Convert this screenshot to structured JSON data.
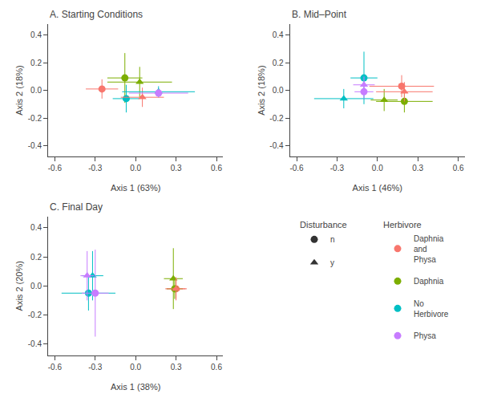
{
  "chart_data": [
    {
      "type": "scatter",
      "title": "A. Starting Conditions",
      "xlabel": "Axis 1 (63%)",
      "ylabel": "Axis 2 (18%)",
      "xlim": [
        -0.65,
        0.65
      ],
      "ylim": [
        -0.48,
        0.48
      ],
      "xticks": [
        -0.6,
        -0.3,
        {
          "value": 0,
          "label": "0.0"
        },
        0.3,
        0.6
      ],
      "yticks": [
        -0.4,
        -0.2,
        {
          "value": 0,
          "label": "0.0"
        },
        0.2,
        0.4
      ],
      "grid": false,
      "x": [
        -0.25,
        -0.08,
        -0.07,
        0.03,
        0.05,
        0.17,
        0.17
      ],
      "values": [
        0.01,
        0.09,
        -0.06,
        0.06,
        -0.05,
        -0.01,
        -0.02
      ],
      "xerr": [
        0.12,
        0.13,
        0.1,
        0.24,
        0.16,
        0.27,
        0.22
      ],
      "yerr": [
        0.07,
        0.18,
        0.1,
        0.11,
        0.07,
        0.04,
        0.03
      ],
      "colors": [
        "#F8766D",
        "#7CAE00",
        "#00BFC4",
        "#7CAE00",
        "#F8766D",
        "#00BFC4",
        "#C77CFF"
      ],
      "markers": [
        "circle",
        "circle",
        "circle",
        "triangle",
        "triangle",
        "triangle",
        "circle"
      ],
      "legends": [
        {
          "title": "Disturbance",
          "entries": [
            {
              "label": "n",
              "color": "#333333",
              "marker": "circle"
            },
            {
              "label": "y",
              "color": "#333333",
              "marker": "triangle"
            }
          ]
        },
        {
          "title": "Herbivore",
          "entries": [
            {
              "label": "Daphnia\nand\nPhysa",
              "color": "#F8766D",
              "marker": "circle"
            },
            {
              "label": "Daphnia",
              "color": "#7CAE00",
              "marker": "circle"
            },
            {
              "label": "No\nHerbivore",
              "color": "#00BFC4",
              "marker": "circle"
            },
            {
              "label": "Physa",
              "color": "#C77CFF",
              "marker": "circle"
            }
          ]
        }
      ]
    },
    {
      "type": "scatter",
      "title": "B. Mid–Point",
      "xlabel": "Axis 1 (46%)",
      "ylabel": "Axis 2 (18%)",
      "xlim": [
        -0.65,
        0.65
      ],
      "ylim": [
        -0.48,
        0.48
      ],
      "xticks": [
        -0.6,
        -0.3,
        {
          "value": 0,
          "label": "0.0"
        },
        0.3,
        0.6
      ],
      "yticks": [
        -0.4,
        -0.2,
        {
          "value": 0,
          "label": "0.0"
        },
        0.2,
        0.4
      ],
      "grid": false,
      "x": [
        -0.25,
        -0.1,
        -0.1,
        -0.1,
        0.05,
        0.18,
        0.2,
        0.2
      ],
      "values": [
        -0.06,
        0.09,
        0.04,
        -0.01,
        -0.07,
        0.03,
        -0.08,
        -0.01
      ],
      "xerr": [
        0.22,
        0.1,
        0.08,
        0.07,
        0.1,
        0.24,
        0.21,
        0.21
      ],
      "yerr": [
        0.07,
        0.19,
        0.06,
        0.05,
        0.08,
        0.08,
        0.08,
        0.07
      ],
      "colors": [
        "#00BFC4",
        "#00BFC4",
        "#C77CFF",
        "#C77CFF",
        "#7CAE00",
        "#F8766D",
        "#7CAE00",
        "#F8766D"
      ],
      "markers": [
        "triangle",
        "circle",
        "triangle",
        "circle",
        "triangle",
        "circle",
        "circle",
        "triangle"
      ]
    },
    {
      "type": "scatter",
      "title": "C. Final Day",
      "xlabel": "Axis 1 (38%)",
      "ylabel": "Axis 2 (20%)",
      "xlim": [
        -0.65,
        0.65
      ],
      "ylim": [
        -0.48,
        0.48
      ],
      "xticks": [
        -0.6,
        -0.3,
        {
          "value": 0,
          "label": "0.0"
        },
        0.3,
        0.6
      ],
      "yticks": [
        -0.4,
        -0.2,
        {
          "value": 0,
          "label": "0.0"
        },
        0.2,
        0.4
      ],
      "grid": false,
      "x": [
        -0.35,
        -0.32,
        -0.36,
        -0.3,
        0.28,
        0.3,
        0.29,
        0.3
      ],
      "values": [
        -0.05,
        0.07,
        0.07,
        -0.05,
        0.05,
        -0.02,
        -0.02,
        -0.02
      ],
      "xerr": [
        0.2,
        0.08,
        0.05,
        0.1,
        0.07,
        0.08,
        0.06,
        0.07
      ],
      "yerr": [
        0.12,
        0.17,
        0.17,
        0.3,
        0.21,
        0.08,
        0.07,
        0.07
      ],
      "colors": [
        "#00BFC4",
        "#00BFC4",
        "#C77CFF",
        "#C77CFF",
        "#7CAE00",
        "#F8766D",
        "#7CAE00",
        "#F8766D"
      ],
      "markers": [
        "circle",
        "triangle",
        "triangle",
        "circle",
        "triangle",
        "circle",
        "circle",
        "triangle"
      ]
    }
  ]
}
